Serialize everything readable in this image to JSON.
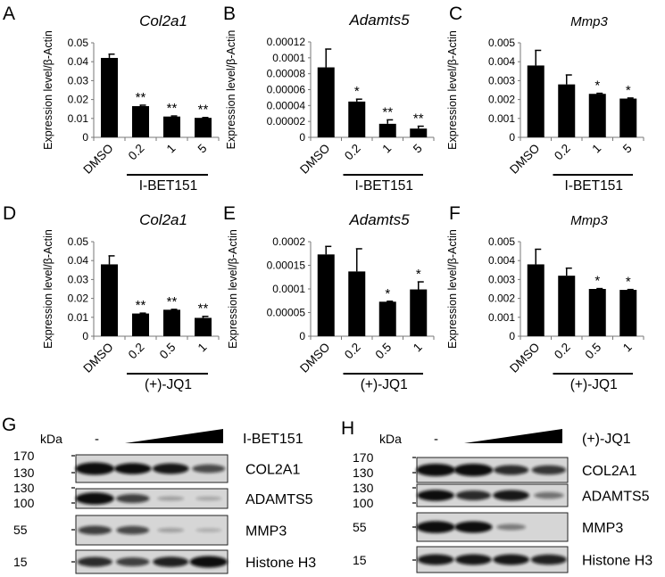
{
  "chart_data": [
    {
      "panel": "A",
      "type": "bar",
      "title": "Col2a1",
      "ylabel": "Expression level/β-Actin",
      "ylim": [
        0,
        0.05
      ],
      "yticks": [
        "0",
        "0.01",
        "0.02",
        "0.03",
        "0.04",
        "0.05"
      ],
      "ytick_values": [
        0,
        0.01,
        0.02,
        0.03,
        0.04,
        0.05
      ],
      "categories": [
        "DMSO",
        "0.2",
        "1",
        "5"
      ],
      "values": [
        0.042,
        0.0165,
        0.011,
        0.0103
      ],
      "errors": [
        0.002,
        0.0005,
        0.0003,
        0.0002
      ],
      "significance": [
        "",
        "**",
        "**",
        "**"
      ],
      "group_label": "I-BET151"
    },
    {
      "panel": "B",
      "type": "bar",
      "title": "Adamts5",
      "ylabel": "Expression level/β-Actin",
      "ylim": [
        0,
        0.00012
      ],
      "yticks": [
        "0",
        "0.00002",
        "0.00004",
        "0.00006",
        "0.00008",
        "0.0001",
        "0.00012"
      ],
      "ytick_values": [
        0,
        2e-05,
        4e-05,
        6e-05,
        8e-05,
        0.0001,
        0.00012
      ],
      "categories": [
        "DMSO",
        "0.2",
        "1",
        "5"
      ],
      "values": [
        8.8e-05,
        4.5e-05,
        1.7e-05,
        1.1e-05
      ],
      "errors": [
        2.3e-05,
        3e-06,
        5e-06,
        3e-06
      ],
      "significance": [
        "",
        "*",
        "**",
        "**"
      ],
      "group_label": "I-BET151"
    },
    {
      "panel": "C",
      "type": "bar",
      "title": "Mmp3",
      "ylabel": "Expression level/β-Actin",
      "ylim": [
        0,
        0.005
      ],
      "yticks": [
        "0",
        "0.001",
        "0.002",
        "0.003",
        "0.004",
        "0.005"
      ],
      "ytick_values": [
        0,
        0.001,
        0.002,
        0.003,
        0.004,
        0.005
      ],
      "categories": [
        "DMSO",
        "0.2",
        "1",
        "5"
      ],
      "values": [
        0.0038,
        0.0028,
        0.0023,
        0.00205
      ],
      "errors": [
        0.0008,
        0.0005,
        3e-05,
        3e-05
      ],
      "significance": [
        "",
        "",
        "*",
        "*"
      ],
      "group_label": "I-BET151"
    },
    {
      "panel": "D",
      "type": "bar",
      "title": "Col2a1",
      "ylabel": "Expression level/β-Actin",
      "ylim": [
        0,
        0.05
      ],
      "yticks": [
        "0",
        "0.01",
        "0.02",
        "0.03",
        "0.04",
        "0.05"
      ],
      "ytick_values": [
        0,
        0.01,
        0.02,
        0.03,
        0.04,
        0.05
      ],
      "categories": [
        "DMSO",
        "0.2",
        "0.5",
        "1"
      ],
      "values": [
        0.038,
        0.012,
        0.014,
        0.0097
      ],
      "errors": [
        0.0045,
        0.0002,
        0.0002,
        0.0008
      ],
      "significance": [
        "",
        "**",
        "**",
        "**"
      ],
      "group_label": "(+)-JQ1"
    },
    {
      "panel": "E",
      "type": "bar",
      "title": "Adamts5",
      "ylabel": "Expression level/β-Actin",
      "ylim": [
        0,
        0.0002
      ],
      "yticks": [
        "0",
        "0.00005",
        "0.0001",
        "0.00015",
        "0.0002"
      ],
      "ytick_values": [
        0,
        5e-05,
        0.0001,
        0.00015,
        0.0002
      ],
      "categories": [
        "DMSO",
        "0.2",
        "0.5",
        "1"
      ],
      "values": [
        0.000173,
        0.000137,
        7.3e-05,
        9.9e-05
      ],
      "errors": [
        1.7e-05,
        4.8e-05,
        1e-06,
        1.6e-05
      ],
      "significance": [
        "",
        "",
        "*",
        "*"
      ],
      "group_label": "(+)-JQ1"
    },
    {
      "panel": "F",
      "type": "bar",
      "title": "Mmp3",
      "ylabel": "Expression level/β-Actin",
      "ylim": [
        0,
        0.005
      ],
      "yticks": [
        "0",
        "0.001",
        "0.002",
        "0.003",
        "0.004",
        "0.005"
      ],
      "ytick_values": [
        0,
        0.001,
        0.002,
        0.003,
        0.004,
        0.005
      ],
      "categories": [
        "DMSO",
        "0.2",
        "0.5",
        "1"
      ],
      "values": [
        0.0038,
        0.0032,
        0.0025,
        0.00245
      ],
      "errors": [
        0.0008,
        0.0004,
        2e-05,
        2e-05
      ],
      "significance": [
        "",
        "",
        "*",
        "*"
      ],
      "group_label": "(+)-JQ1"
    }
  ],
  "blots": [
    {
      "panel": "G",
      "kda_label": "kDa",
      "control_label": "-",
      "treatment": "I-BET151",
      "rows": [
        {
          "protein": "COL2A1",
          "markers": [
            "170",
            "130"
          ],
          "bands": [
            1.0,
            0.85,
            0.8,
            0.55
          ]
        },
        {
          "protein": "ADAMTS5",
          "markers": [
            "130",
            "100"
          ],
          "bands": [
            0.95,
            0.6,
            0.12,
            0.08
          ]
        },
        {
          "protein": "MMP3",
          "markers": [
            "55"
          ],
          "bands": [
            0.6,
            0.55,
            0.12,
            0.05
          ]
        },
        {
          "protein": "Histone H3",
          "markers": [
            "15"
          ],
          "bands": [
            0.7,
            0.6,
            0.75,
            0.9
          ]
        }
      ]
    },
    {
      "panel": "H",
      "kda_label": "kDa",
      "control_label": "-",
      "treatment": "(+)-JQ1",
      "rows": [
        {
          "protein": "COL2A1",
          "markers": [
            "170",
            "130"
          ],
          "bands": [
            1.0,
            1.0,
            0.7,
            0.65
          ]
        },
        {
          "protein": "ADAMTS5",
          "markers": [
            "130",
            "100"
          ],
          "bands": [
            0.85,
            0.7,
            0.8,
            0.35
          ]
        },
        {
          "protein": "MMP3",
          "markers": [
            "55"
          ],
          "bands": [
            0.95,
            0.9,
            0.3,
            0.0
          ]
        },
        {
          "protein": "Histone H3",
          "markers": [
            "15"
          ],
          "bands": [
            0.8,
            0.8,
            0.8,
            0.75
          ]
        }
      ]
    }
  ],
  "colors": {
    "bar": "#000000",
    "blot_background": "#d6d6d6",
    "band": "#111111"
  }
}
